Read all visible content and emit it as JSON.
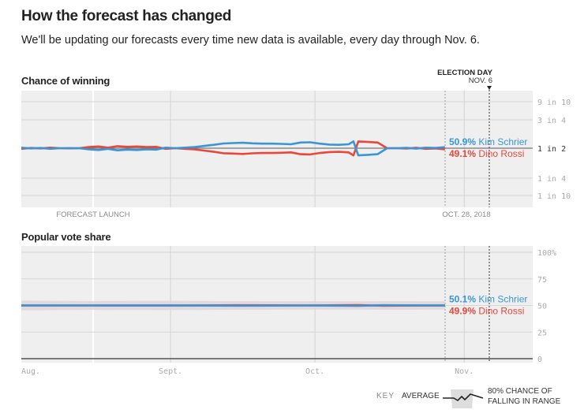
{
  "header": {
    "title": "How the forecast has changed",
    "subtitle": "We'll be updating our forecasts every time new data is available, every day through Nov. 6."
  },
  "colors": {
    "schrier": "#3a95d6",
    "rossi": "#e8473a",
    "plot_bg": "#efefef",
    "band_blue": "#c9d7e6",
    "band_red": "#e9d2d2"
  },
  "annotations": {
    "election_day": "ELECTION DAY",
    "election_date": "NOV. 6",
    "forecast_launch": "FORECAST LAUNCH",
    "latest": "OCT. 28, 2018"
  },
  "key": {
    "label": "KEY",
    "average": "AVERAGE",
    "range_line1": "80% CHANCE OF",
    "range_line2": "FALLING IN RANGE"
  },
  "chart_data": [
    {
      "type": "line",
      "title": "Chance of winning",
      "y_ticks": [
        {
          "value": 0.9,
          "label": "9 in 10"
        },
        {
          "value": 0.75,
          "label": "3 in 4"
        },
        {
          "value": 0.5,
          "label": "1 in 2"
        },
        {
          "value": 0.25,
          "label": "1 in 4"
        },
        {
          "value": 0.1,
          "label": "1 in 10"
        }
      ],
      "x_range": [
        "2018-08-01",
        "2018-11-12"
      ],
      "x_markers": [
        {
          "date": "2018-08-16",
          "label": "FORECAST LAUNCH"
        },
        {
          "date": "2018-10-28",
          "label": "OCT. 28, 2018"
        },
        {
          "date": "2018-11-06",
          "label": "NOV. 6"
        }
      ],
      "x": [
        "2018-08-01",
        "2018-08-03",
        "2018-08-05",
        "2018-08-07",
        "2018-08-09",
        "2018-08-11",
        "2018-08-13",
        "2018-08-15",
        "2018-08-17",
        "2018-08-19",
        "2018-08-21",
        "2018-08-23",
        "2018-08-25",
        "2018-08-27",
        "2018-08-29",
        "2018-08-31",
        "2018-09-02",
        "2018-09-04",
        "2018-09-06",
        "2018-09-08",
        "2018-09-10",
        "2018-09-12",
        "2018-09-14",
        "2018-09-16",
        "2018-09-18",
        "2018-09-20",
        "2018-09-22",
        "2018-09-24",
        "2018-09-26",
        "2018-09-28",
        "2018-09-30",
        "2018-10-02",
        "2018-10-04",
        "2018-10-06",
        "2018-10-08",
        "2018-10-09",
        "2018-10-10",
        "2018-10-12",
        "2018-10-14",
        "2018-10-16",
        "2018-10-18",
        "2018-10-20",
        "2018-10-22",
        "2018-10-24",
        "2018-10-26",
        "2018-10-28"
      ],
      "series": [
        {
          "name": "Kim Schrier",
          "final_label": "50.9%",
          "values": [
            50.5,
            49.8,
            50.2,
            49.5,
            50.0,
            50.1,
            50.0,
            49.0,
            48.5,
            49.5,
            48.2,
            48.8,
            48.5,
            49.0,
            48.8,
            50.5,
            50.0,
            50.5,
            51.0,
            52.0,
            53.0,
            54.2,
            54.5,
            54.8,
            54.3,
            54.0,
            54.0,
            53.8,
            53.5,
            55.0,
            55.2,
            54.0,
            53.2,
            53.0,
            53.5,
            56.0,
            44.0,
            44.5,
            45.0,
            50.0,
            50.0,
            50.3,
            49.6,
            50.5,
            50.2,
            50.9
          ]
        },
        {
          "name": "Dino Rossi",
          "final_label": "49.1%",
          "values": [
            49.5,
            50.2,
            49.8,
            50.5,
            50.0,
            49.9,
            50.0,
            51.0,
            51.5,
            50.5,
            51.8,
            51.2,
            51.5,
            51.0,
            51.2,
            49.5,
            50.0,
            49.5,
            49.0,
            48.0,
            47.0,
            45.8,
            45.5,
            45.2,
            45.7,
            46.0,
            46.0,
            46.2,
            46.5,
            45.0,
            44.8,
            46.0,
            46.8,
            47.0,
            46.5,
            44.0,
            56.0,
            55.5,
            55.0,
            50.0,
            50.0,
            49.7,
            50.4,
            49.5,
            49.8,
            49.1
          ]
        }
      ]
    },
    {
      "type": "line",
      "title": "Popular vote share",
      "ylim": [
        0,
        100
      ],
      "y_ticks": [
        {
          "value": 100,
          "label": "100%"
        },
        {
          "value": 75,
          "label": "75"
        },
        {
          "value": 50,
          "label": "50"
        },
        {
          "value": 25,
          "label": "25"
        },
        {
          "value": 0,
          "label": "0"
        }
      ],
      "x_ticks": [
        {
          "date": "2018-08-01",
          "label": "Aug."
        },
        {
          "date": "2018-09-01",
          "label": "Sept."
        },
        {
          "date": "2018-10-01",
          "label": "Oct."
        },
        {
          "date": "2018-11-01",
          "label": "Nov."
        }
      ],
      "x": [
        "2018-08-01",
        "2018-08-15",
        "2018-09-01",
        "2018-09-15",
        "2018-10-01",
        "2018-10-10",
        "2018-10-15",
        "2018-10-28"
      ],
      "series": [
        {
          "name": "Kim Schrier",
          "final_label": "50.1%",
          "values": [
            50.1,
            50.0,
            50.1,
            49.8,
            49.9,
            49.6,
            50.2,
            50.1
          ],
          "lower": [
            45.5,
            46,
            45.8,
            46,
            46.2,
            46,
            46.2,
            46.3
          ],
          "upper": [
            54.6,
            54.2,
            54.4,
            54,
            53.8,
            53.6,
            54.1,
            53.9
          ]
        },
        {
          "name": "Dino Rossi",
          "final_label": "49.9%",
          "values": [
            49.9,
            50.0,
            49.9,
            50.2,
            50.1,
            50.4,
            49.8,
            49.9
          ],
          "lower": [
            45.4,
            45.8,
            45.6,
            46,
            46.2,
            46.4,
            45.9,
            46.1
          ],
          "upper": [
            54.5,
            54,
            54.2,
            54,
            54,
            54,
            53.8,
            53.7
          ]
        }
      ]
    }
  ]
}
